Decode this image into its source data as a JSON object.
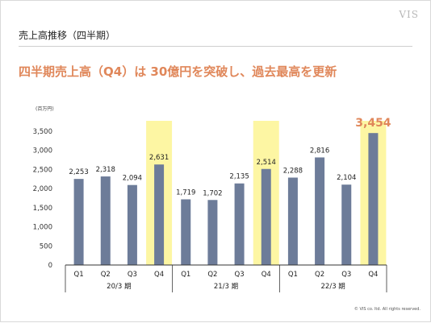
{
  "slide": {
    "logo": "VIS",
    "title": "売上高推移（四半期）",
    "headline": "四半期売上高（Q4）は 30億円を突破し、過去最高を更新",
    "copyright": "© VIS co. ltd. All rights reserved."
  },
  "chart_data": {
    "type": "bar",
    "unit_label": "(百万円)",
    "categories": [
      "Q1",
      "Q2",
      "Q3",
      "Q4",
      "Q1",
      "Q2",
      "Q3",
      "Q4",
      "Q1",
      "Q2",
      "Q3",
      "Q4"
    ],
    "groups": [
      {
        "label": "20/3 期",
        "start": 0,
        "end": 3
      },
      {
        "label": "21/3 期",
        "start": 4,
        "end": 7
      },
      {
        "label": "22/3 期",
        "start": 8,
        "end": 11
      }
    ],
    "values": [
      2253,
      2318,
      2094,
      2631,
      1719,
      1702,
      2135,
      2514,
      2288,
      2816,
      2104,
      3454
    ],
    "value_labels": [
      "2,253",
      "2,318",
      "2,094",
      "2,631",
      "1,719",
      "1,702",
      "2,135",
      "2,514",
      "2,288",
      "2,816",
      "2,104",
      "3,454"
    ],
    "highlighted_indices": [
      3,
      7,
      11
    ],
    "emphasized_index": 11,
    "ylim": [
      0,
      3500
    ],
    "yticks": [
      0,
      500,
      1000,
      1500,
      2000,
      2500,
      3000,
      3500
    ],
    "ytick_labels": [
      "0",
      "500",
      "1,000",
      "1,500",
      "2,000",
      "2,500",
      "3,000",
      "3,500"
    ],
    "grid": false,
    "colors": {
      "bar": "#6d7c99",
      "highlight": "#fdf6a3",
      "emphasis_text": "#e0875a",
      "axis": "#333333"
    }
  }
}
